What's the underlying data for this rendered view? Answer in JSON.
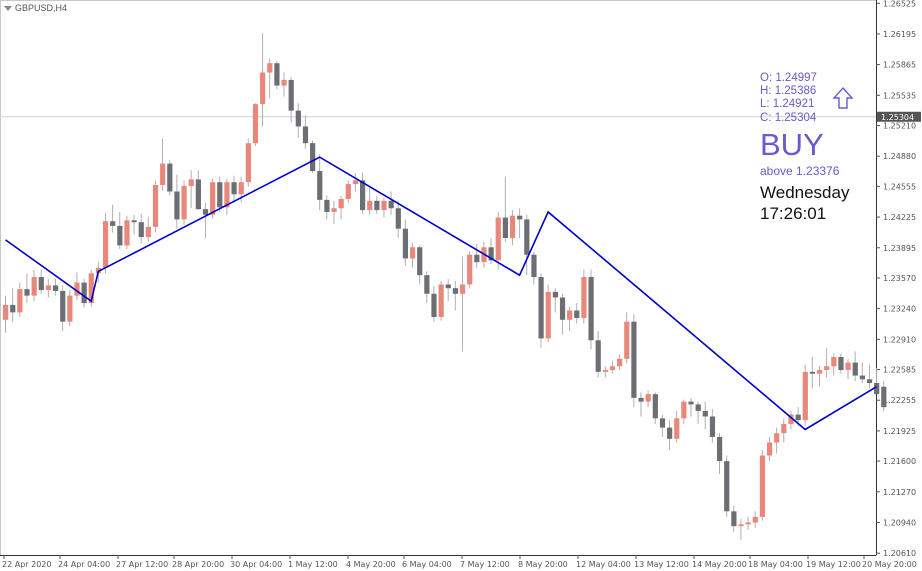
{
  "symbol": {
    "label": "GBPUSD,H4"
  },
  "ohlc": {
    "o": "O: 1.24997",
    "h": "H: 1.25386",
    "l": "L: 1.24921",
    "c": "C: 1.25304"
  },
  "signal": {
    "label": "BUY",
    "above": "above 1.23376",
    "day": "Wednesday",
    "time": "17:26:01"
  },
  "current_price": "1.25304",
  "colors": {
    "bull": "#e8877a",
    "bear": "#6b6e73",
    "zigzag": "#0000cc",
    "signal": "#6a5acd",
    "price_line": "#d0d0d0"
  },
  "chart_data": {
    "type": "candlestick",
    "title": "",
    "xlabel": "",
    "ylabel": "",
    "ylim": [
      1.2059,
      1.2656
    ],
    "y_ticks": [
      "1.26525",
      "1.26195",
      "1.25865",
      "1.25535",
      "1.25210",
      "1.24880",
      "1.24555",
      "1.24225",
      "1.23895",
      "1.23570",
      "1.23240",
      "1.22910",
      "1.22585",
      "1.22255",
      "1.21925",
      "1.21600",
      "1.21270",
      "1.20940",
      "1.20610"
    ],
    "x_ticks": [
      "22 Apr 2020",
      "24 Apr 04:00",
      "27 Apr 12:00",
      "28 Apr 20:00",
      "30 Apr 04:00",
      "1 May 12:00",
      "4 May 20:00",
      "6 May 04:00",
      "7 May 12:00",
      "8 May 20:00",
      "12 May 04:00",
      "13 May 12:00",
      "14 May 20:00",
      "18 May 04:00",
      "19 May 12:00",
      "20 May 20:00"
    ],
    "candles": [
      {
        "o": 1.2312,
        "h": 1.2338,
        "l": 1.2298,
        "c": 1.2328
      },
      {
        "o": 1.2328,
        "h": 1.2346,
        "l": 1.231,
        "c": 1.232
      },
      {
        "o": 1.232,
        "h": 1.2352,
        "l": 1.2315,
        "c": 1.2345
      },
      {
        "o": 1.2345,
        "h": 1.2362,
        "l": 1.233,
        "c": 1.2338
      },
      {
        "o": 1.2338,
        "h": 1.2366,
        "l": 1.2332,
        "c": 1.2358
      },
      {
        "o": 1.2358,
        "h": 1.2366,
        "l": 1.234,
        "c": 1.2344
      },
      {
        "o": 1.2344,
        "h": 1.2356,
        "l": 1.2336,
        "c": 1.2349
      },
      {
        "o": 1.2349,
        "h": 1.2356,
        "l": 1.2338,
        "c": 1.2343
      },
      {
        "o": 1.2343,
        "h": 1.2349,
        "l": 1.23,
        "c": 1.231
      },
      {
        "o": 1.231,
        "h": 1.2344,
        "l": 1.2305,
        "c": 1.2338
      },
      {
        "o": 1.2338,
        "h": 1.2363,
        "l": 1.2333,
        "c": 1.2352
      },
      {
        "o": 1.2352,
        "h": 1.2356,
        "l": 1.2325,
        "c": 1.233
      },
      {
        "o": 1.233,
        "h": 1.2366,
        "l": 1.2326,
        "c": 1.2362
      },
      {
        "o": 1.2362,
        "h": 1.2374,
        "l": 1.2352,
        "c": 1.2368
      },
      {
        "o": 1.2368,
        "h": 1.2427,
        "l": 1.2362,
        "c": 1.2418
      },
      {
        "o": 1.2418,
        "h": 1.2436,
        "l": 1.2406,
        "c": 1.2413
      },
      {
        "o": 1.2413,
        "h": 1.2428,
        "l": 1.2388,
        "c": 1.2392
      },
      {
        "o": 1.2392,
        "h": 1.2424,
        "l": 1.2388,
        "c": 1.2419
      },
      {
        "o": 1.2419,
        "h": 1.2425,
        "l": 1.2404,
        "c": 1.2417
      },
      {
        "o": 1.2417,
        "h": 1.2426,
        "l": 1.2394,
        "c": 1.2401
      },
      {
        "o": 1.2401,
        "h": 1.2423,
        "l": 1.2396,
        "c": 1.2412
      },
      {
        "o": 1.2412,
        "h": 1.2462,
        "l": 1.2406,
        "c": 1.2457
      },
      {
        "o": 1.2457,
        "h": 1.2507,
        "l": 1.2451,
        "c": 1.248
      },
      {
        "o": 1.248,
        "h": 1.2484,
        "l": 1.2446,
        "c": 1.245
      },
      {
        "o": 1.245,
        "h": 1.2468,
        "l": 1.241,
        "c": 1.242
      },
      {
        "o": 1.242,
        "h": 1.2462,
        "l": 1.2414,
        "c": 1.2456
      },
      {
        "o": 1.2456,
        "h": 1.2473,
        "l": 1.2432,
        "c": 1.2463
      },
      {
        "o": 1.2463,
        "h": 1.2473,
        "l": 1.243,
        "c": 1.2431
      },
      {
        "o": 1.2431,
        "h": 1.2438,
        "l": 1.24,
        "c": 1.2425
      },
      {
        "o": 1.2425,
        "h": 1.2464,
        "l": 1.2421,
        "c": 1.246
      },
      {
        "o": 1.246,
        "h": 1.2466,
        "l": 1.2428,
        "c": 1.2433
      },
      {
        "o": 1.2433,
        "h": 1.2464,
        "l": 1.2425,
        "c": 1.246
      },
      {
        "o": 1.246,
        "h": 1.2467,
        "l": 1.2438,
        "c": 1.2447
      },
      {
        "o": 1.2447,
        "h": 1.2466,
        "l": 1.2438,
        "c": 1.246
      },
      {
        "o": 1.246,
        "h": 1.2507,
        "l": 1.2455,
        "c": 1.2502
      },
      {
        "o": 1.2502,
        "h": 1.2545,
        "l": 1.2499,
        "c": 1.2544
      },
      {
        "o": 1.2544,
        "h": 1.262,
        "l": 1.252,
        "c": 1.2578
      },
      {
        "o": 1.2578,
        "h": 1.2593,
        "l": 1.255,
        "c": 1.2588
      },
      {
        "o": 1.2588,
        "h": 1.259,
        "l": 1.256,
        "c": 1.2564
      },
      {
        "o": 1.2564,
        "h": 1.2578,
        "l": 1.2552,
        "c": 1.257
      },
      {
        "o": 1.257,
        "h": 1.2573,
        "l": 1.2524,
        "c": 1.2537
      },
      {
        "o": 1.2537,
        "h": 1.2545,
        "l": 1.2508,
        "c": 1.252
      },
      {
        "o": 1.252,
        "h": 1.2532,
        "l": 1.2496,
        "c": 1.2502
      },
      {
        "o": 1.2502,
        "h": 1.2505,
        "l": 1.247,
        "c": 1.2472
      },
      {
        "o": 1.2472,
        "h": 1.249,
        "l": 1.243,
        "c": 1.2441
      },
      {
        "o": 1.2441,
        "h": 1.2446,
        "l": 1.242,
        "c": 1.2428
      },
      {
        "o": 1.2428,
        "h": 1.244,
        "l": 1.2415,
        "c": 1.2432
      },
      {
        "o": 1.2432,
        "h": 1.2445,
        "l": 1.242,
        "c": 1.2442
      },
      {
        "o": 1.2442,
        "h": 1.2462,
        "l": 1.2438,
        "c": 1.2458
      },
      {
        "o": 1.2458,
        "h": 1.247,
        "l": 1.245,
        "c": 1.2462
      },
      {
        "o": 1.2462,
        "h": 1.247,
        "l": 1.2426,
        "c": 1.243
      },
      {
        "o": 1.243,
        "h": 1.2454,
        "l": 1.2425,
        "c": 1.244
      },
      {
        "o": 1.244,
        "h": 1.2445,
        "l": 1.2426,
        "c": 1.243
      },
      {
        "o": 1.243,
        "h": 1.2443,
        "l": 1.2422,
        "c": 1.244
      },
      {
        "o": 1.244,
        "h": 1.245,
        "l": 1.2425,
        "c": 1.2432
      },
      {
        "o": 1.2432,
        "h": 1.244,
        "l": 1.24,
        "c": 1.241
      },
      {
        "o": 1.241,
        "h": 1.242,
        "l": 1.237,
        "c": 1.2378
      },
      {
        "o": 1.2378,
        "h": 1.2395,
        "l": 1.2368,
        "c": 1.239
      },
      {
        "o": 1.239,
        "h": 1.2392,
        "l": 1.235,
        "c": 1.236
      },
      {
        "o": 1.236,
        "h": 1.2364,
        "l": 1.233,
        "c": 1.234
      },
      {
        "o": 1.234,
        "h": 1.2348,
        "l": 1.231,
        "c": 1.2315
      },
      {
        "o": 1.2315,
        "h": 1.2354,
        "l": 1.2311,
        "c": 1.235
      },
      {
        "o": 1.235,
        "h": 1.2356,
        "l": 1.2332,
        "c": 1.2346
      },
      {
        "o": 1.2346,
        "h": 1.2354,
        "l": 1.2322,
        "c": 1.234
      },
      {
        "o": 1.234,
        "h": 1.238,
        "l": 1.2278,
        "c": 1.235
      },
      {
        "o": 1.235,
        "h": 1.2386,
        "l": 1.2346,
        "c": 1.2382
      },
      {
        "o": 1.2382,
        "h": 1.2394,
        "l": 1.2368,
        "c": 1.2374
      },
      {
        "o": 1.2374,
        "h": 1.2396,
        "l": 1.2368,
        "c": 1.239
      },
      {
        "o": 1.239,
        "h": 1.24,
        "l": 1.2372,
        "c": 1.2376
      },
      {
        "o": 1.2376,
        "h": 1.2428,
        "l": 1.2366,
        "c": 1.2422
      },
      {
        "o": 1.2422,
        "h": 1.2466,
        "l": 1.2396,
        "c": 1.24
      },
      {
        "o": 1.24,
        "h": 1.243,
        "l": 1.2392,
        "c": 1.2424
      },
      {
        "o": 1.2424,
        "h": 1.2432,
        "l": 1.24,
        "c": 1.242
      },
      {
        "o": 1.242,
        "h": 1.2425,
        "l": 1.236,
        "c": 1.2382
      },
      {
        "o": 1.2382,
        "h": 1.2385,
        "l": 1.235,
        "c": 1.2358
      },
      {
        "o": 1.2358,
        "h": 1.2362,
        "l": 1.2282,
        "c": 1.2292
      },
      {
        "o": 1.2292,
        "h": 1.235,
        "l": 1.2288,
        "c": 1.2342
      },
      {
        "o": 1.2342,
        "h": 1.2346,
        "l": 1.232,
        "c": 1.2336
      },
      {
        "o": 1.2336,
        "h": 1.234,
        "l": 1.2296,
        "c": 1.2312
      },
      {
        "o": 1.2312,
        "h": 1.2326,
        "l": 1.23,
        "c": 1.2322
      },
      {
        "o": 1.2322,
        "h": 1.233,
        "l": 1.2308,
        "c": 1.2314
      },
      {
        "o": 1.2314,
        "h": 1.2366,
        "l": 1.2308,
        "c": 1.2358
      },
      {
        "o": 1.2358,
        "h": 1.2366,
        "l": 1.228,
        "c": 1.229
      },
      {
        "o": 1.229,
        "h": 1.23,
        "l": 1.225,
        "c": 1.2256
      },
      {
        "o": 1.2256,
        "h": 1.2262,
        "l": 1.225,
        "c": 1.2258
      },
      {
        "o": 1.2258,
        "h": 1.2268,
        "l": 1.2254,
        "c": 1.2262
      },
      {
        "o": 1.2262,
        "h": 1.2275,
        "l": 1.2258,
        "c": 1.227
      },
      {
        "o": 1.227,
        "h": 1.232,
        "l": 1.2265,
        "c": 1.231
      },
      {
        "o": 1.231,
        "h": 1.2318,
        "l": 1.2218,
        "c": 1.2228
      },
      {
        "o": 1.2228,
        "h": 1.2234,
        "l": 1.2208,
        "c": 1.2224
      },
      {
        "o": 1.2224,
        "h": 1.2236,
        "l": 1.2218,
        "c": 1.2232
      },
      {
        "o": 1.2232,
        "h": 1.2234,
        "l": 1.22,
        "c": 1.2206
      },
      {
        "o": 1.2206,
        "h": 1.221,
        "l": 1.2186,
        "c": 1.2196
      },
      {
        "o": 1.2196,
        "h": 1.2204,
        "l": 1.2172,
        "c": 1.2184
      },
      {
        "o": 1.2184,
        "h": 1.2214,
        "l": 1.218,
        "c": 1.2206
      },
      {
        "o": 1.2206,
        "h": 1.2226,
        "l": 1.22,
        "c": 1.2224
      },
      {
        "o": 1.2224,
        "h": 1.2228,
        "l": 1.2208,
        "c": 1.2221
      },
      {
        "o": 1.2221,
        "h": 1.2224,
        "l": 1.22,
        "c": 1.2214
      },
      {
        "o": 1.2214,
        "h": 1.2224,
        "l": 1.2194,
        "c": 1.2208
      },
      {
        "o": 1.2208,
        "h": 1.2216,
        "l": 1.218,
        "c": 1.2186
      },
      {
        "o": 1.2186,
        "h": 1.219,
        "l": 1.2146,
        "c": 1.216
      },
      {
        "o": 1.216,
        "h": 1.2166,
        "l": 1.21,
        "c": 1.2106
      },
      {
        "o": 1.2106,
        "h": 1.2112,
        "l": 1.2084,
        "c": 1.209
      },
      {
        "o": 1.209,
        "h": 1.2098,
        "l": 1.2075,
        "c": 1.2092
      },
      {
        "o": 1.2092,
        "h": 1.21,
        "l": 1.2086,
        "c": 1.2094
      },
      {
        "o": 1.2094,
        "h": 1.2106,
        "l": 1.2088,
        "c": 1.21
      },
      {
        "o": 1.21,
        "h": 1.2172,
        "l": 1.2096,
        "c": 1.2166
      },
      {
        "o": 1.2166,
        "h": 1.2186,
        "l": 1.216,
        "c": 1.218
      },
      {
        "o": 1.218,
        "h": 1.2196,
        "l": 1.2168,
        "c": 1.219
      },
      {
        "o": 1.219,
        "h": 1.2206,
        "l": 1.218,
        "c": 1.22
      },
      {
        "o": 1.22,
        "h": 1.2214,
        "l": 1.2194,
        "c": 1.221
      },
      {
        "o": 1.221,
        "h": 1.2218,
        "l": 1.2198,
        "c": 1.2204
      },
      {
        "o": 1.2204,
        "h": 1.2264,
        "l": 1.2198,
        "c": 1.2256
      },
      {
        "o": 1.2256,
        "h": 1.2272,
        "l": 1.2238,
        "c": 1.2254
      },
      {
        "o": 1.2254,
        "h": 1.2262,
        "l": 1.224,
        "c": 1.2258
      },
      {
        "o": 1.2258,
        "h": 1.2282,
        "l": 1.225,
        "c": 1.2262
      },
      {
        "o": 1.2262,
        "h": 1.2276,
        "l": 1.2252,
        "c": 1.2272
      },
      {
        "o": 1.2272,
        "h": 1.2276,
        "l": 1.2254,
        "c": 1.2258
      },
      {
        "o": 1.2258,
        "h": 1.227,
        "l": 1.2248,
        "c": 1.2266
      },
      {
        "o": 1.2266,
        "h": 1.2278,
        "l": 1.2246,
        "c": 1.2252
      },
      {
        "o": 1.2252,
        "h": 1.2266,
        "l": 1.2244,
        "c": 1.2248
      },
      {
        "o": 1.2248,
        "h": 1.2264,
        "l": 1.2238,
        "c": 1.2244
      },
      {
        "o": 1.2244,
        "h": 1.226,
        "l": 1.2236,
        "c": 1.2232
      },
      {
        "o": 1.224,
        "h": 1.2246,
        "l": 1.2214,
        "c": 1.2218
      }
    ],
    "zigzag": [
      {
        "i": 0,
        "price": 1.2398
      },
      {
        "i": 12,
        "price": 1.2332
      },
      {
        "i": 13,
        "price": 1.2364
      },
      {
        "i": 44,
        "price": 1.2487
      },
      {
        "i": 72,
        "price": 1.236
      },
      {
        "i": 76,
        "price": 1.2428
      },
      {
        "i": 112,
        "price": 1.2194
      },
      {
        "i": 122,
        "price": 1.224
      }
    ]
  }
}
